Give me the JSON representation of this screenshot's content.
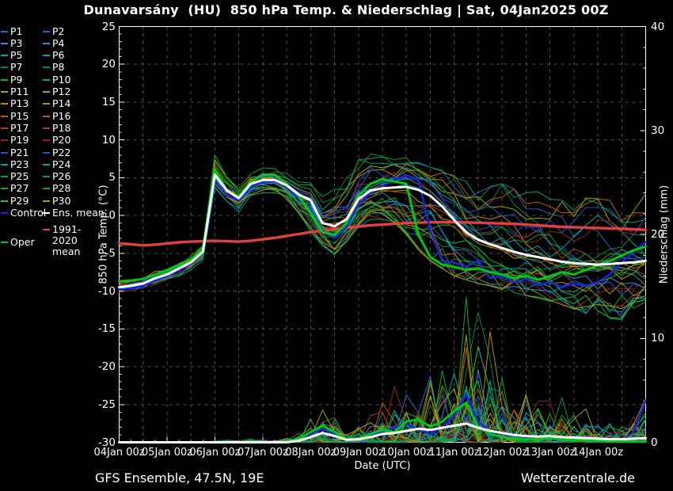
{
  "title": "Dunavarsány  (HU)  850 hPa Temp. & Niederschlag | Sat, 04Jan2025 00Z",
  "footer": {
    "left": "GFS Ensemble, 47.5N, 19E",
    "right": "Wetterzentrale.de"
  },
  "axes": {
    "x": {
      "label": "Date (UTC)",
      "tick_labels": [
        "04Jan 00z",
        "05Jan 00z",
        "06Jan 00z",
        "07Jan 00z",
        "08Jan 00z",
        "09Jan 00z",
        "10Jan 00z",
        "11Jan 00z",
        "12Jan 00z",
        "13Jan 00z",
        "14Jan 00z"
      ],
      "range_hours": [
        0,
        264
      ],
      "grid_step_hours": 12,
      "minor_tick_hours": 6
    },
    "y_left": {
      "label": "850 hPa Temp. (°C)",
      "ticks": [
        25,
        20,
        15,
        10,
        5,
        0,
        -5,
        -10,
        -15,
        -20,
        -25,
        -30
      ],
      "range": [
        -30,
        25
      ],
      "minor_step": 1,
      "grid_step": 5
    },
    "y_right": {
      "label": "Niederschlag (mm)",
      "ticks": [
        40,
        30,
        20,
        10,
        0
      ],
      "range": [
        0,
        40
      ],
      "minor_step": 2
    }
  },
  "colors": {
    "background": "#000000",
    "text": "#ffffff",
    "grid": "#54544a",
    "border": "#ffffff",
    "control": "#1228e0",
    "ens_mean": "#ffffff",
    "oper": "#00c814",
    "climate": "#e04040"
  },
  "legend": {
    "members": [
      {
        "label": "P1",
        "color": "#2a62c9"
      },
      {
        "label": "P2",
        "color": "#2a62c9"
      },
      {
        "label": "P3",
        "color": "#3a8ed8"
      },
      {
        "label": "P4",
        "color": "#3a8ed8"
      },
      {
        "label": "P5",
        "color": "#00a0b4"
      },
      {
        "label": "P6",
        "color": "#00a0b4"
      },
      {
        "label": "P7",
        "color": "#0a8a2a"
      },
      {
        "label": "P8",
        "color": "#0a8a2a"
      },
      {
        "label": "P9",
        "color": "#12b42e"
      },
      {
        "label": "P10",
        "color": "#12b42e"
      },
      {
        "label": "P11",
        "color": "#a8a400"
      },
      {
        "label": "P12",
        "color": "#a8a400"
      },
      {
        "label": "P13",
        "color": "#c08a00"
      },
      {
        "label": "P14",
        "color": "#c08a00"
      },
      {
        "label": "P15",
        "color": "#c26000"
      },
      {
        "label": "P16",
        "color": "#c26000"
      },
      {
        "label": "P17",
        "color": "#b24000"
      },
      {
        "label": "P18",
        "color": "#b24000"
      },
      {
        "label": "P19",
        "color": "#9a2020"
      },
      {
        "label": "P20",
        "color": "#9a2020"
      },
      {
        "label": "P21",
        "color": "#1e4fd8"
      },
      {
        "label": "P22",
        "color": "#1e4fd8"
      },
      {
        "label": "P23",
        "color": "#00a4a4"
      },
      {
        "label": "P24",
        "color": "#00a4a4"
      },
      {
        "label": "P25",
        "color": "#00a05c"
      },
      {
        "label": "P26",
        "color": "#00a05c"
      },
      {
        "label": "P27",
        "color": "#0aa428"
      },
      {
        "label": "P28",
        "color": "#0aa428"
      },
      {
        "label": "P29",
        "color": "#22c238"
      },
      {
        "label": "P30",
        "color": "#a8a400"
      }
    ],
    "control_label": "Control",
    "ens_mean_label": "Ens. mean",
    "oper_label": "Oper",
    "climate_label": "1991-2020 mean"
  },
  "chart_data": {
    "type": "line",
    "title": "Dunavarsány (HU) 850 hPa Temp. & Niederschlag, GFS Ensemble run Sat 04Jan2025 00Z",
    "x": {
      "start": "04Jan2025 00Z",
      "step_hours": 6,
      "n_points": 45,
      "end": "15Jan2025 00Z"
    },
    "ylabel_left": "850 hPa Temp. (°C)",
    "ylim_left": [
      -30,
      25
    ],
    "ylabel_right": "Niederschlag (mm)",
    "ylim_right": [
      0,
      40
    ],
    "grid": true,
    "legend_position": "left",
    "temperature_c": {
      "ens_mean": [
        -9.5,
        -9.3,
        -9.0,
        -8.3,
        -7.8,
        -7.0,
        -6.2,
        -4.8,
        5.4,
        3.3,
        2.3,
        4.2,
        4.7,
        4.7,
        4.0,
        2.8,
        2.0,
        -1.0,
        -1.4,
        -0.5,
        2.2,
        3.3,
        3.6,
        3.7,
        3.8,
        3.4,
        2.6,
        1.2,
        -0.6,
        -2.2,
        -3.2,
        -3.8,
        -4.3,
        -4.8,
        -5.2,
        -5.5,
        -5.8,
        -6.1,
        -6.3,
        -6.4,
        -6.5,
        -6.4,
        -6.3,
        -6.2,
        -6.0
      ],
      "control": [
        -9.8,
        -9.6,
        -9.3,
        -8.6,
        -8.0,
        -7.2,
        -6.4,
        -5.0,
        4.6,
        2.6,
        2.0,
        3.8,
        4.4,
        4.5,
        3.8,
        2.2,
        0.8,
        -2.0,
        -3.0,
        -1.5,
        1.5,
        3.0,
        3.8,
        4.8,
        5.3,
        4.8,
        -2.0,
        -6.0,
        -6.2,
        -6.8,
        -6.0,
        -8.3,
        -8.0,
        -8.8,
        -8.4,
        -9.2,
        -8.8,
        -9.5,
        -9.0,
        -9.3,
        -8.8,
        -7.8,
        -6.2,
        -4.8,
        -3.5
      ],
      "oper": [
        -8.7,
        -8.6,
        -8.4,
        -7.8,
        -7.2,
        -6.5,
        -5.8,
        -4.4,
        6.2,
        3.2,
        2.5,
        4.4,
        5.4,
        5.4,
        4.2,
        2.6,
        0.4,
        -2.2,
        -2.6,
        -1.0,
        2.6,
        4.2,
        4.8,
        4.5,
        4.2,
        -2.5,
        -5.5,
        -6.5,
        -6.8,
        -7.2,
        -7.0,
        -7.5,
        -7.8,
        -8.3,
        -8.0,
        -8.5,
        -8.0,
        -7.5,
        -7.8,
        -7.2,
        -6.6,
        -6.0,
        -5.3,
        -4.6,
        -4.1
      ],
      "climate_1991_2020": [
        -3.7,
        -3.8,
        -3.95,
        -3.85,
        -3.7,
        -3.55,
        -3.45,
        -3.4,
        -3.35,
        -3.4,
        -3.45,
        -3.35,
        -3.15,
        -2.95,
        -2.7,
        -2.45,
        -2.2,
        -2.0,
        -1.8,
        -1.6,
        -1.45,
        -1.3,
        -1.2,
        -1.1,
        -1.0,
        -0.95,
        -0.9,
        -0.9,
        -0.9,
        -0.92,
        -0.95,
        -1.0,
        -1.05,
        -1.1,
        -1.2,
        -1.3,
        -1.4,
        -1.5,
        -1.55,
        -1.6,
        -1.65,
        -1.7,
        -1.75,
        -1.82,
        -1.9
      ],
      "envelope_upper": [
        -8.4,
        -8.3,
        -8.0,
        -7.4,
        -6.8,
        -6.0,
        -5.2,
        -3.4,
        9.0,
        6.0,
        3.8,
        5.5,
        6.3,
        6.3,
        5.6,
        4.5,
        4.5,
        2.5,
        3.5,
        5.0,
        8.0,
        9.3,
        8.0,
        7.5,
        7.8,
        7.0,
        6.5,
        6.0,
        5.5,
        4.5,
        4.0,
        3.8,
        4.2,
        3.5,
        3.0,
        3.4,
        3.8,
        3.0,
        2.6,
        2.4,
        2.2,
        2.0,
        1.6,
        2.2,
        3.0
      ],
      "envelope_lower": [
        -10.3,
        -10.2,
        -9.9,
        -9.3,
        -8.7,
        -8.0,
        -7.2,
        -6.0,
        3.2,
        1.5,
        0.5,
        2.5,
        3.0,
        3.0,
        2.2,
        0.2,
        -2.2,
        -4.0,
        -5.2,
        -3.5,
        -1.5,
        -0.5,
        -0.5,
        -1.0,
        -2.5,
        -4.5,
        -6.0,
        -7.0,
        -8.0,
        -8.5,
        -9.0,
        -9.3,
        -9.8,
        -10.2,
        -10.6,
        -11.0,
        -11.4,
        -11.8,
        -12.4,
        -13.0,
        -13.4,
        -13.6,
        -13.8,
        -13.5,
        -13.0
      ]
    },
    "precipitation_mm": {
      "ens_mean": [
        0,
        0,
        0,
        0,
        0,
        0,
        0,
        0,
        0,
        0,
        0,
        0,
        0,
        0,
        0,
        0.15,
        0.5,
        0.9,
        0.6,
        0.25,
        0.3,
        0.5,
        0.8,
        0.9,
        1.1,
        1.3,
        1.2,
        1.4,
        1.6,
        1.8,
        1.4,
        1.1,
        0.9,
        0.7,
        0.6,
        0.55,
        0.6,
        0.5,
        0.45,
        0.4,
        0.35,
        0.3,
        0.3,
        0.35,
        0.4
      ],
      "control": [
        0,
        0,
        0,
        0,
        0,
        0,
        0,
        0,
        0,
        0,
        0,
        0,
        0,
        0,
        0,
        0.2,
        0.8,
        1.3,
        0.8,
        0.2,
        0.3,
        0.6,
        1.0,
        1.4,
        1.8,
        1.2,
        0.8,
        1.5,
        2.5,
        4.6,
        2.0,
        1.0,
        0.8,
        0.5,
        0.4,
        0.3,
        0.5,
        0.4,
        0.3,
        0.2,
        0.2,
        0.3,
        0.2,
        1.0,
        4.0
      ],
      "oper": [
        0,
        0,
        0,
        0,
        0,
        0,
        0,
        0,
        0,
        0,
        0,
        0,
        0,
        0,
        0,
        0.3,
        1.0,
        1.6,
        1.0,
        0.2,
        0.4,
        0.8,
        1.2,
        1.0,
        2.0,
        2.2,
        1.5,
        2.0,
        3.0,
        3.8,
        1.5,
        0.8,
        0.5,
        0.4,
        0.3,
        0.3,
        0.4,
        0.3,
        0.2,
        0.2,
        0.15,
        0.1,
        0.1,
        0.1,
        0.1
      ],
      "envelope_max": [
        0,
        0,
        0,
        0,
        0,
        0,
        0,
        0,
        0.2,
        0.2,
        0.2,
        0.3,
        0.3,
        0.2,
        0.4,
        1.0,
        2.2,
        3.7,
        2.6,
        1.0,
        1.5,
        2.6,
        4.2,
        5.6,
        6.6,
        8.0,
        10.0,
        13.2,
        9.0,
        14.0,
        12.5,
        12.0,
        8.5,
        5.0,
        4.6,
        4.2,
        4.0,
        4.3,
        3.0,
        3.2,
        2.6,
        2.0,
        1.6,
        2.6,
        4.2
      ]
    },
    "members": {
      "count": 30,
      "seed": 20250104
    }
  }
}
